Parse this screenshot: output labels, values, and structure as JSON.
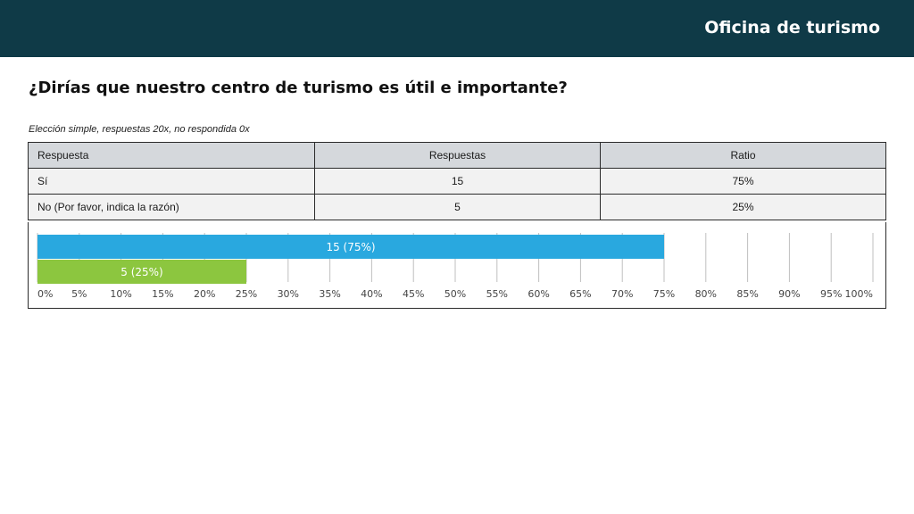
{
  "header": {
    "title": "Oficina de turismo"
  },
  "question": "¿Dirías que nuestro centro de turismo es útil e importante?",
  "meta": "Elección simple, respuestas 20x, no respondida 0x",
  "table": {
    "headers": [
      "Respuesta",
      "Respuestas",
      "Ratio"
    ],
    "rows": [
      [
        "Sí",
        "15",
        "75%"
      ],
      [
        "No (Por favor, indica la razón)",
        "5",
        "25%"
      ]
    ]
  },
  "chart_data": {
    "type": "bar",
    "orientation": "horizontal",
    "categories": [
      "Sí",
      "No (Por favor, indica la razón)"
    ],
    "values": [
      75,
      25
    ],
    "counts": [
      15,
      5
    ],
    "data_labels": [
      "15 (75%)",
      "5 (25%)"
    ],
    "colors": [
      "#29a8df",
      "#8cc63f"
    ],
    "xlim": [
      0,
      100
    ],
    "xticks": [
      0,
      5,
      10,
      15,
      20,
      25,
      30,
      35,
      40,
      45,
      50,
      55,
      60,
      65,
      70,
      75,
      80,
      85,
      90,
      95,
      100
    ],
    "xtick_labels": [
      "0%",
      "5%",
      "10%",
      "15%",
      "20%",
      "25%",
      "30%",
      "35%",
      "40%",
      "45%",
      "50%",
      "55%",
      "60%",
      "65%",
      "70%",
      "75%",
      "80%",
      "85%",
      "90%",
      "95%",
      "100%"
    ],
    "grid": true,
    "legend": "none"
  }
}
